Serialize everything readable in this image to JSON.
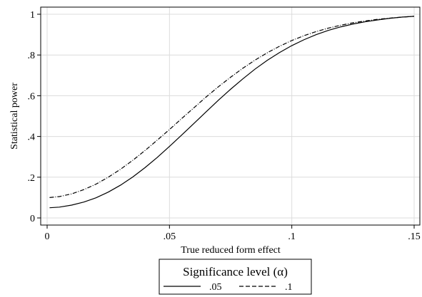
{
  "chart_data": {
    "type": "line",
    "xlabel": "True reduced form effect",
    "ylabel": "Statistical power",
    "xlim": [
      0,
      0.15
    ],
    "ylim": [
      0,
      1
    ],
    "x_ticks": [
      {
        "value": 0,
        "label": "0"
      },
      {
        "value": 0.05,
        "label": ".05"
      },
      {
        "value": 0.1,
        "label": ".1"
      },
      {
        "value": 0.15,
        "label": ".15"
      }
    ],
    "y_ticks": [
      {
        "value": 0,
        "label": "0"
      },
      {
        "value": 0.2,
        "label": ".2"
      },
      {
        "value": 0.4,
        "label": ".4"
      },
      {
        "value": 0.6,
        "label": ".6"
      },
      {
        "value": 0.8,
        "label": ".8"
      },
      {
        "value": 1,
        "label": "1"
      }
    ],
    "grid": true,
    "legend": {
      "title": "Significance level (α)",
      "placement": "bottom"
    },
    "series": [
      {
        "name": ".05",
        "style": "solid",
        "color": "#000000",
        "x": [
          0.001,
          0.005,
          0.01,
          0.015,
          0.02,
          0.025,
          0.03,
          0.035,
          0.04,
          0.045,
          0.05,
          0.055,
          0.06,
          0.065,
          0.07,
          0.075,
          0.08,
          0.085,
          0.09,
          0.095,
          0.1,
          0.105,
          0.11,
          0.115,
          0.12,
          0.125,
          0.13,
          0.135,
          0.14,
          0.145,
          0.15
        ],
        "values": [
          0.05,
          0.053,
          0.063,
          0.078,
          0.099,
          0.127,
          0.161,
          0.201,
          0.247,
          0.297,
          0.351,
          0.407,
          0.464,
          0.521,
          0.578,
          0.632,
          0.683,
          0.731,
          0.774,
          0.812,
          0.846,
          0.875,
          0.9,
          0.921,
          0.938,
          0.952,
          0.963,
          0.972,
          0.98,
          0.986,
          0.99
        ]
      },
      {
        "name": ".1",
        "style": "dashed",
        "color": "#000000",
        "x": [
          0.001,
          0.005,
          0.01,
          0.015,
          0.02,
          0.025,
          0.03,
          0.035,
          0.04,
          0.045,
          0.05,
          0.055,
          0.06,
          0.065,
          0.07,
          0.075,
          0.08,
          0.085,
          0.09,
          0.095,
          0.1,
          0.105,
          0.11,
          0.115,
          0.12,
          0.125,
          0.13,
          0.135,
          0.14,
          0.145,
          0.15
        ],
        "values": [
          0.1,
          0.105,
          0.118,
          0.139,
          0.166,
          0.2,
          0.239,
          0.283,
          0.331,
          0.382,
          0.434,
          0.488,
          0.541,
          0.594,
          0.644,
          0.691,
          0.735,
          0.775,
          0.811,
          0.843,
          0.871,
          0.895,
          0.915,
          0.932,
          0.946,
          0.958,
          0.967,
          0.975,
          0.981,
          0.986,
          0.99
        ]
      }
    ]
  }
}
